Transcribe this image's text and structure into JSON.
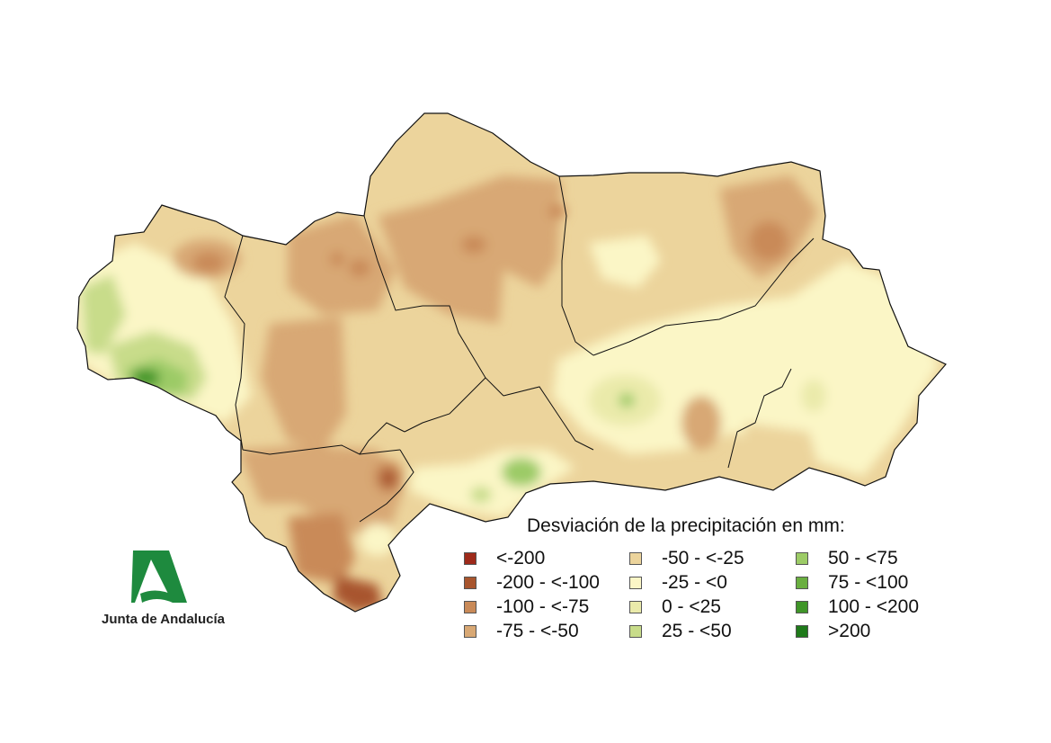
{
  "legend": {
    "title": "Desviación de la precipitación en mm:",
    "items": [
      {
        "label": "<-200",
        "color": "#9e2a1a"
      },
      {
        "label": "-200 - <-100",
        "color": "#a8552d"
      },
      {
        "label": "-100 - <-75",
        "color": "#c98a58"
      },
      {
        "label": "-75 - <-50",
        "color": "#d8a874"
      },
      {
        "label": "-50 - <-25",
        "color": "#ecd49c"
      },
      {
        "label": "-25 - <0",
        "color": "#fbf6c6"
      },
      {
        "label": "0 - <25",
        "color": "#eaeaaa"
      },
      {
        "label": "25 - <50",
        "color": "#c8dc8a"
      },
      {
        "label": "50 - <75",
        "color": "#9ccb66"
      },
      {
        "label": "75 - <100",
        "color": "#6aaf40"
      },
      {
        "label": "100 - <200",
        "color": "#3f9528"
      },
      {
        "label": ">200",
        "color": "#1f7a1a"
      }
    ]
  },
  "logo": {
    "text": "Junta de Andalucía",
    "color": "#1e8a3e"
  }
}
